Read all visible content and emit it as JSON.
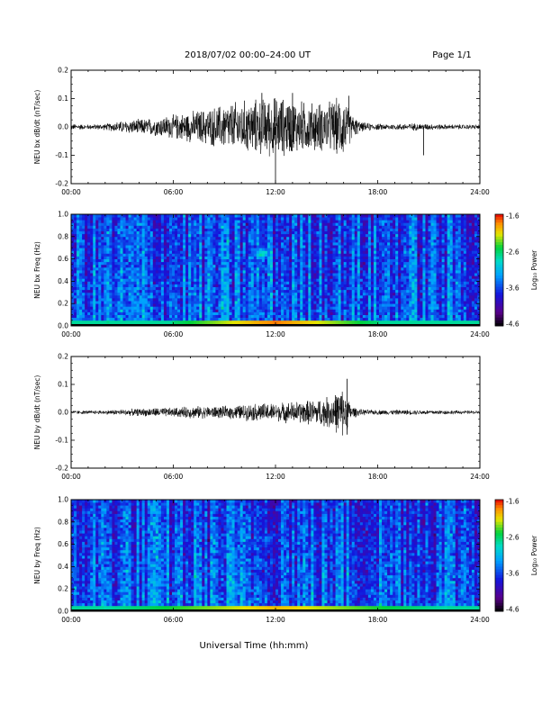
{
  "header": {
    "title": "2018/07/02  00:00–24:00 UT",
    "page": "Page 1/1"
  },
  "xlabel": "Universal Time (hh:mm)",
  "chart_data": [
    {
      "type": "line",
      "ylabel": "NEU bx dB/dt (nT/sec)",
      "xlim": [
        0,
        24
      ],
      "ylim": [
        -0.2,
        0.2
      ],
      "xticks": [
        "00:00",
        "06:00",
        "12:00",
        "18:00",
        "24:00"
      ],
      "yticks": [
        "-0.2",
        "-0.1",
        "0.0",
        "0.1",
        "0.2"
      ],
      "series": [
        {
          "hour": [
            0,
            1,
            2,
            3,
            4,
            5,
            6,
            7,
            8,
            9,
            10,
            11,
            12,
            13,
            14,
            15,
            16,
            16.5,
            17,
            18,
            19,
            20,
            21,
            22,
            23,
            24
          ],
          "envelope_amplitude": [
            0.01,
            0.008,
            0.01,
            0.02,
            0.025,
            0.03,
            0.04,
            0.05,
            0.06,
            0.075,
            0.085,
            0.09,
            0.1,
            0.09,
            0.08,
            0.08,
            0.1,
            0.04,
            0.015,
            0.01,
            0.01,
            0.012,
            0.01,
            0.008,
            0.008,
            0.008
          ]
        }
      ],
      "peaks": [
        {
          "hour": 11.2,
          "value": 0.12
        },
        {
          "hour": 12.0,
          "value": -0.2
        },
        {
          "hour": 13.0,
          "value": 0.12
        },
        {
          "hour": 16.3,
          "value": 0.11
        },
        {
          "hour": 20.7,
          "value": -0.1
        }
      ]
    },
    {
      "type": "heatmap",
      "ylabel": "NEU bx Freq (Hz)",
      "xlim": [
        0,
        24
      ],
      "ylim": [
        0.0,
        1.0
      ],
      "xticks": [
        "00:00",
        "06:00",
        "12:00",
        "18:00",
        "24:00"
      ],
      "yticks": [
        "0.0",
        "0.2",
        "0.4",
        "0.6",
        "0.8",
        "1.0"
      ],
      "colorbar": {
        "label": "Log₁₀ Power",
        "range": [
          -4.6,
          -1.6
        ],
        "ticks": [
          "-1.6",
          "-2.6",
          "-3.6",
          "-4.6"
        ]
      },
      "features": [
        {
          "hour": 11.2,
          "freq_hz": 0.65,
          "log_power": -2.6
        },
        {
          "hour_range": [
            6,
            18
          ],
          "freq_hz": 0.02,
          "log_power": -1.8
        }
      ]
    },
    {
      "type": "line",
      "ylabel": "NEU by dB/dt (nT/sec)",
      "xlim": [
        0,
        24
      ],
      "ylim": [
        -0.2,
        0.2
      ],
      "xticks": [
        "00:00",
        "06:00",
        "12:00",
        "18:00",
        "24:00"
      ],
      "yticks": [
        "-0.2",
        "-0.1",
        "0.0",
        "0.1",
        "0.2"
      ],
      "series": [
        {
          "hour": [
            0,
            1,
            2,
            3,
            4,
            5,
            6,
            7,
            8,
            9,
            10,
            11,
            12,
            13,
            14,
            15,
            16,
            16.5,
            17,
            18,
            19,
            20,
            21,
            22,
            23,
            24
          ],
          "envelope_amplitude": [
            0.006,
            0.006,
            0.007,
            0.01,
            0.012,
            0.015,
            0.015,
            0.02,
            0.02,
            0.02,
            0.025,
            0.03,
            0.03,
            0.035,
            0.04,
            0.05,
            0.08,
            0.02,
            0.01,
            0.008,
            0.008,
            0.008,
            0.008,
            0.007,
            0.006,
            0.006
          ]
        }
      ],
      "peaks": [
        {
          "hour": 16.2,
          "value": 0.12
        },
        {
          "hour": 16.2,
          "value": -0.08
        }
      ]
    },
    {
      "type": "heatmap",
      "ylabel": "NEU by Freq (Hz)",
      "xlim": [
        0,
        24
      ],
      "ylim": [
        0.0,
        1.0
      ],
      "xticks": [
        "00:00",
        "06:00",
        "12:00",
        "18:00",
        "24:00"
      ],
      "yticks": [
        "0.0",
        "0.2",
        "0.4",
        "0.6",
        "0.8",
        "1.0"
      ],
      "colorbar": {
        "label": "Log₁₀ Power",
        "range": [
          -4.6,
          -1.6
        ],
        "ticks": [
          "-1.6",
          "-2.6",
          "-3.6",
          "-4.6"
        ]
      },
      "features": [
        {
          "hour": 11.5,
          "freq_hz": 0.65,
          "log_power": -3.2
        },
        {
          "hour_range": [
            2,
            22
          ],
          "freq_hz": 0.02,
          "log_power": -2.0
        }
      ]
    }
  ]
}
